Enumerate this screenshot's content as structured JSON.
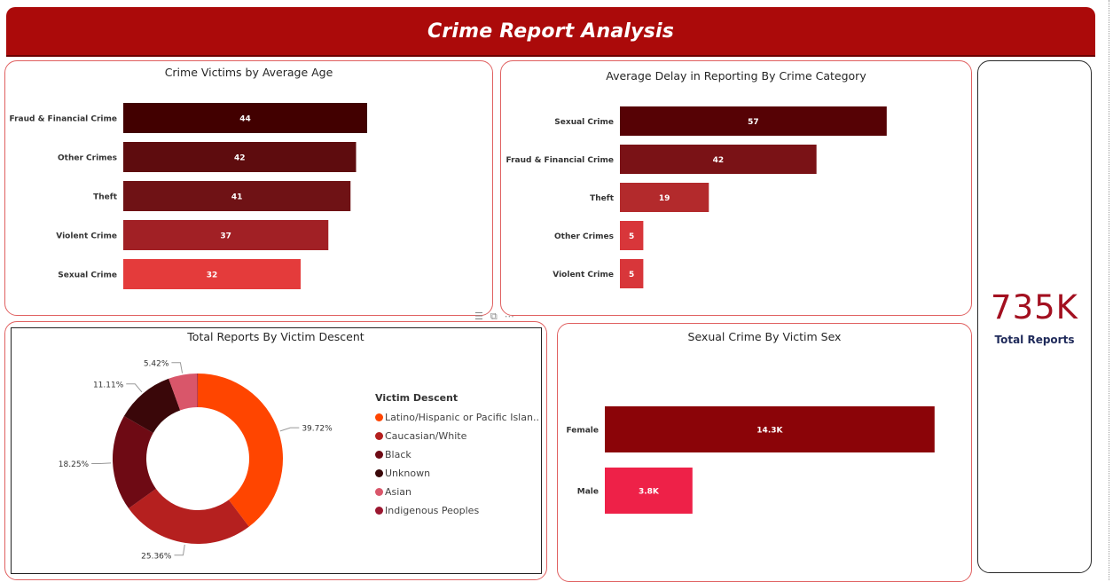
{
  "header": {
    "title": "Crime Report Analysis"
  },
  "kpi": {
    "value": "735K",
    "label": "Total Reports"
  },
  "colors": {
    "header": "#ab0a0a",
    "card_border": "#e06060",
    "kpi_value": "#a31020",
    "kpi_label": "#1f2a5a"
  },
  "toolbar": {
    "icons": [
      "filter-icon",
      "focus-mode-icon",
      "more-options-icon"
    ]
  },
  "chart_data": [
    {
      "type": "bar",
      "orientation": "horizontal",
      "title": "Crime Victims by Average Age",
      "categories": [
        "Fraud & Financial Crime",
        "Other Crimes",
        "Theft",
        "Violent Crime",
        "Sexual Crime"
      ],
      "values": [
        44,
        42,
        41,
        37,
        32
      ],
      "labels": [
        "44",
        "42",
        "41",
        "37",
        "32"
      ],
      "colors": [
        "#420000",
        "#5e0c0e",
        "#6f1215",
        "#a12025",
        "#e43b3b"
      ],
      "xlim": [
        0,
        60
      ]
    },
    {
      "type": "bar",
      "orientation": "horizontal",
      "title": "Average Delay in Reporting By Crime Category",
      "categories": [
        "Sexual Crime",
        "Fraud & Financial Crime",
        "Theft",
        "Other Crimes",
        "Violent Crime"
      ],
      "values": [
        57,
        42,
        19,
        5,
        5
      ],
      "labels": [
        "57",
        "42",
        "19",
        "5",
        "5"
      ],
      "colors": [
        "#560205",
        "#7a1216",
        "#b32a2c",
        "#d8363a",
        "#d8363a"
      ],
      "xlim": [
        0,
        72
      ]
    },
    {
      "type": "pie",
      "donut": true,
      "title": "Total Reports By Victim Descent",
      "legend_title": "Victim Descent",
      "legend_position": "right",
      "slices": [
        {
          "name": "Latino/Hispanic or Pacific Islan...",
          "value": 39.72,
          "label": "39.72%",
          "color": "#ff4500"
        },
        {
          "name": "Caucasian/White",
          "value": 25.36,
          "label": "25.36%",
          "color": "#b5201f"
        },
        {
          "name": "Black",
          "value": 18.25,
          "label": "18.25%",
          "color": "#6e0a14"
        },
        {
          "name": "Unknown",
          "value": 11.11,
          "label": "11.11%",
          "color": "#3a0709"
        },
        {
          "name": "Asian",
          "value": 5.42,
          "label": "5.42%",
          "color": "#d9566a"
        },
        {
          "name": "Indigenous Peoples",
          "value": 0.14,
          "label": "",
          "color": "#9b1730"
        }
      ]
    },
    {
      "type": "bar",
      "orientation": "horizontal",
      "title": "Sexual Crime By Victim Sex",
      "categories": [
        "Female",
        "Male"
      ],
      "values": [
        14.3,
        3.8
      ],
      "labels": [
        "14.3K",
        "3.8K"
      ],
      "colors": [
        "#8b0408",
        "#ee2148"
      ],
      "xlim": [
        0,
        16
      ]
    }
  ]
}
